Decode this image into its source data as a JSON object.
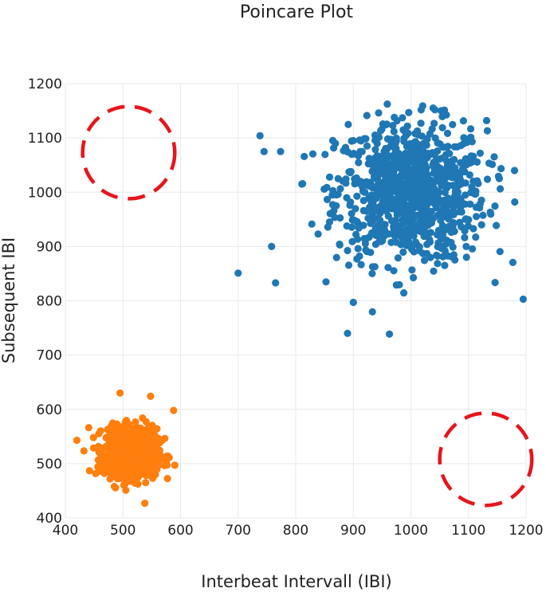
{
  "chart_data": {
    "type": "scatter",
    "title": "Poincare Plot",
    "xlabel": "Interbeat Intervall (IBI)",
    "ylabel": "Subsequent IBI",
    "xlim": [
      400,
      1200
    ],
    "ylim": [
      400,
      1200
    ],
    "x_ticks": [
      "400",
      "500",
      "600",
      "700",
      "800",
      "900",
      "1000",
      "1100",
      "1200"
    ],
    "y_ticks": [
      "400",
      "500",
      "600",
      "700",
      "800",
      "900",
      "1000",
      "1100",
      "1200"
    ],
    "grid": true,
    "legend": "none",
    "series": [
      {
        "color": "#1f77b4",
        "cluster": {
          "center": [
            1000,
            1000
          ],
          "spread": 65,
          "count": 900
        },
        "outliers": [
          [
            700,
            851
          ],
          [
            738,
            1104
          ],
          [
            758,
            900
          ],
          [
            765,
            833
          ],
          [
            890,
            740
          ],
          [
            900,
            797
          ],
          [
            1195,
            803
          ],
          [
            745,
            1075
          ],
          [
            1180,
            1040
          ]
        ]
      },
      {
        "color": "#ff7f0e",
        "cluster": {
          "center": [
            515,
            520
          ],
          "spread": 22,
          "count": 1000
        },
        "outliers": [
          [
            495,
            630
          ],
          [
            548,
            624
          ],
          [
            538,
            427
          ],
          [
            420,
            543
          ],
          [
            588,
            598
          ],
          [
            590,
            497
          ]
        ]
      }
    ],
    "annotations": [
      {
        "shape": "dashed-circle",
        "center": [
          510,
          1073
        ],
        "radius_x": 80,
        "radius_y": 85,
        "color": "#e8141c"
      },
      {
        "shape": "dashed-circle",
        "center": [
          1130,
          508
        ],
        "radius_x": 80,
        "radius_y": 85,
        "color": "#e8141c"
      }
    ]
  }
}
